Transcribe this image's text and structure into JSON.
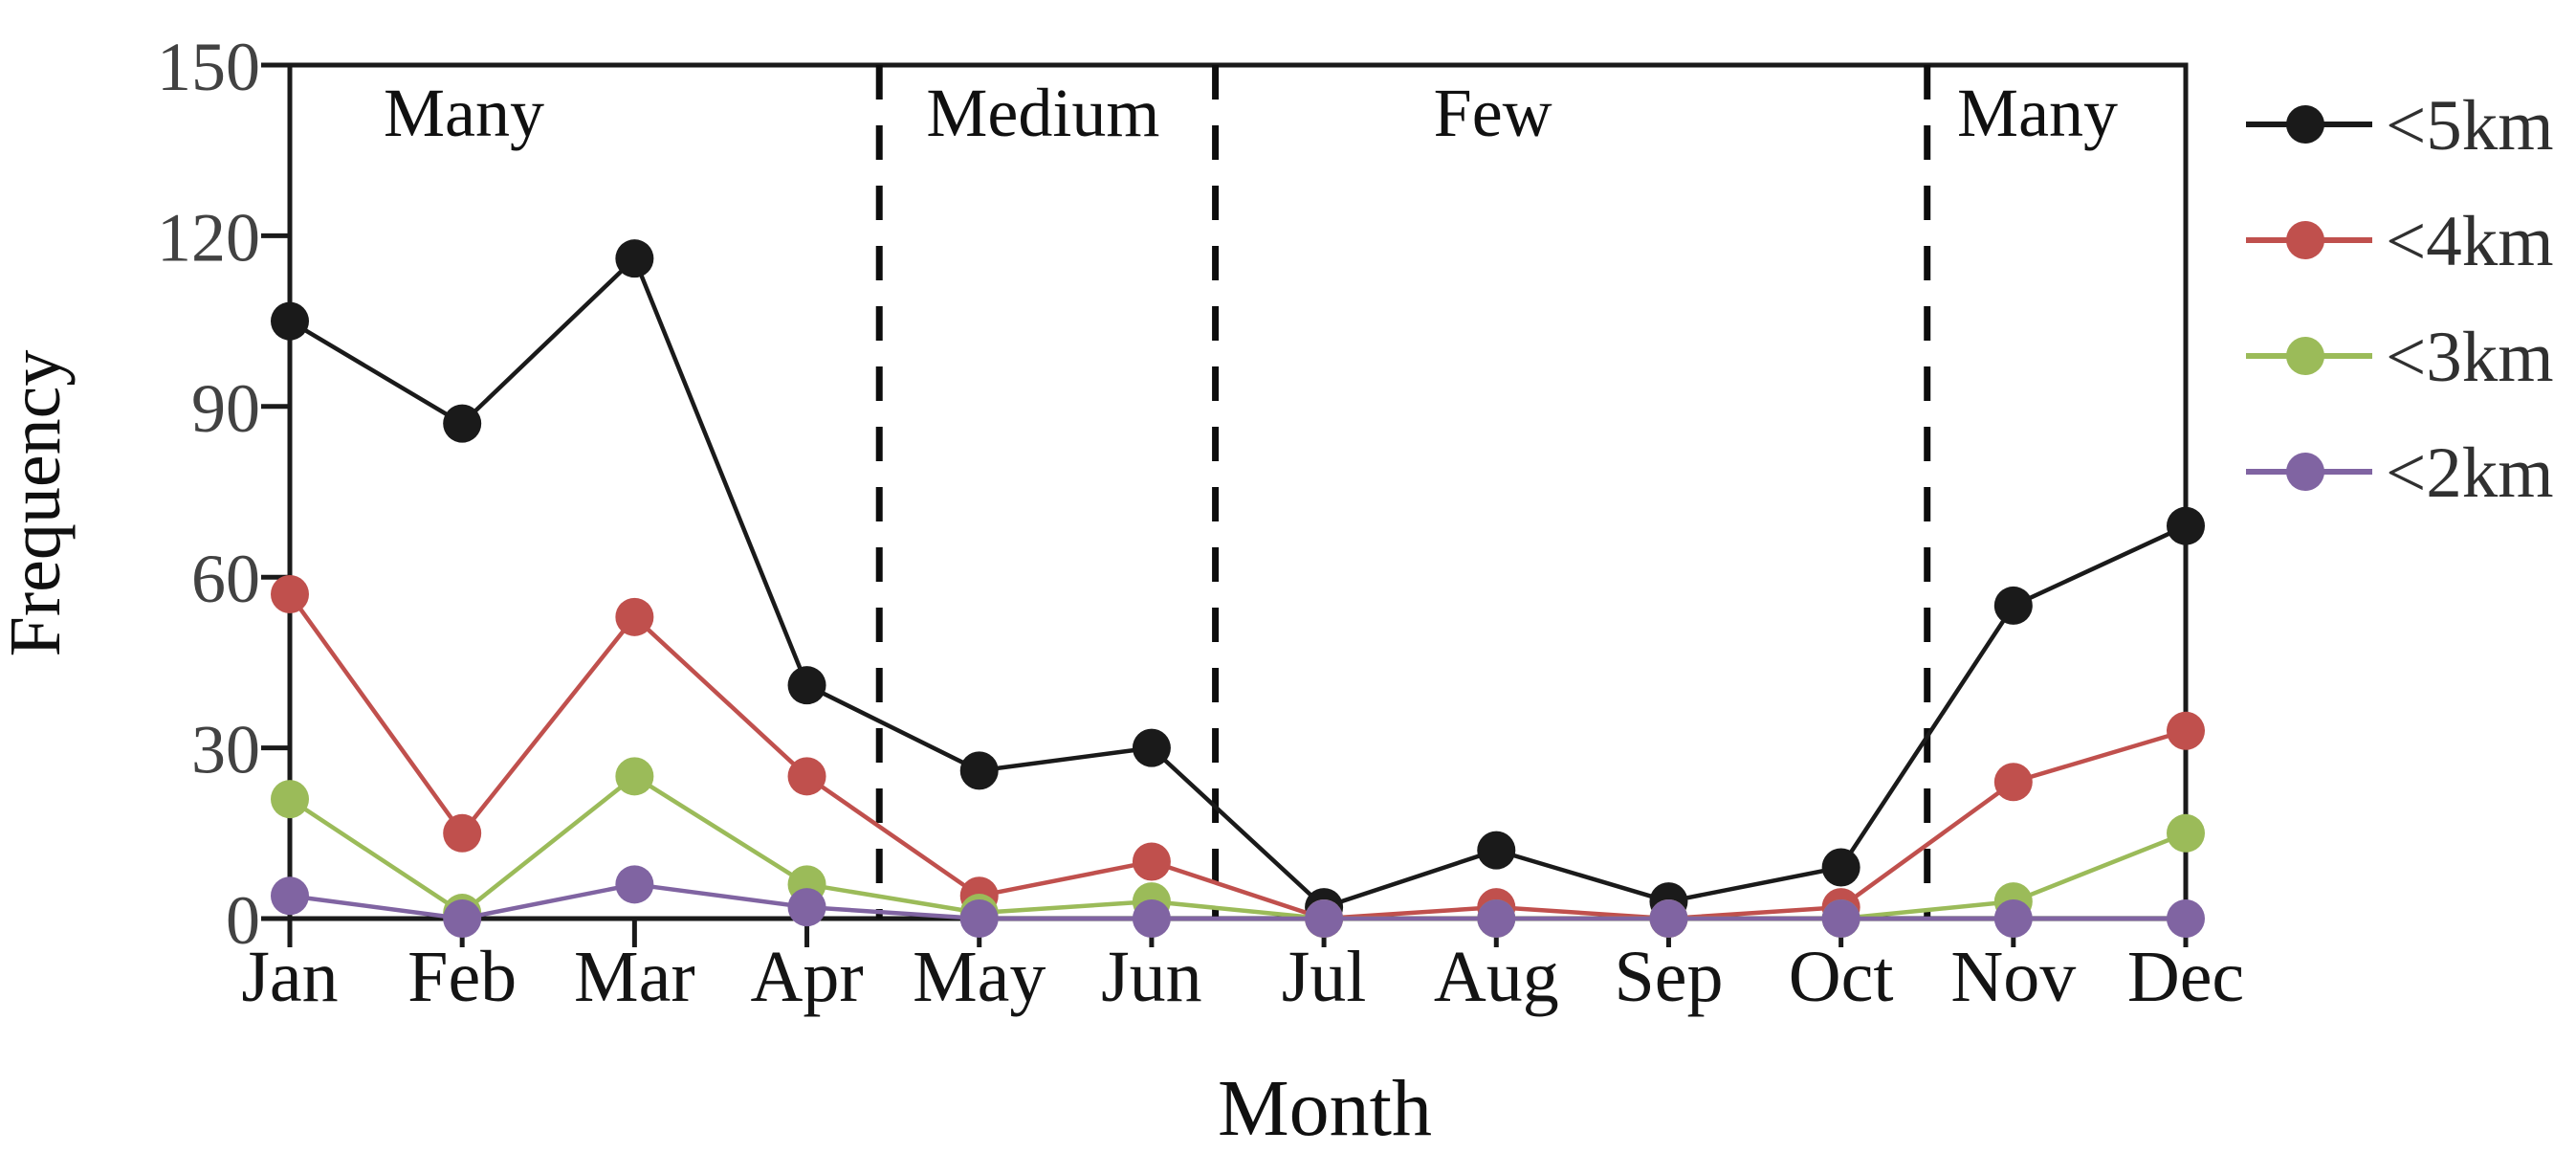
{
  "figure_title": "",
  "chart_data": {
    "type": "line",
    "title": "",
    "xlabel": "Month",
    "ylabel": "Frequency",
    "ylim": [
      0,
      150
    ],
    "yticks": [
      0,
      30,
      60,
      90,
      120,
      150
    ],
    "grid": false,
    "legend_position": "right",
    "categories": [
      "Jan",
      "Feb",
      "Mar",
      "Apr",
      "May",
      "Jun",
      "Jul",
      "Aug",
      "Sep",
      "Oct",
      "Nov",
      "Dec"
    ],
    "series": [
      {
        "name": "<5km",
        "color": "#1a1a1a",
        "values": [
          105,
          87,
          116,
          41,
          26,
          30,
          2,
          12,
          3,
          9,
          55,
          69
        ]
      },
      {
        "name": "<4km",
        "color": "#c0504d",
        "values": [
          57,
          15,
          53,
          25,
          4,
          10,
          0,
          2,
          0,
          2,
          24,
          33
        ]
      },
      {
        "name": "<3km",
        "color": "#9bbb59",
        "values": [
          21,
          1,
          25,
          6,
          1,
          3,
          0,
          0,
          0,
          0,
          3,
          15
        ]
      },
      {
        "name": "<2km",
        "color": "#8064a2",
        "values": [
          4,
          0,
          6,
          2,
          0,
          0,
          0,
          0,
          0,
          0,
          0,
          0
        ]
      }
    ],
    "dividers_month_x": [
      3.42,
      5.37,
      9.5
    ],
    "annotations": [
      {
        "text": "Many",
        "month_x": 1.01
      },
      {
        "text": "Medium",
        "month_x": 4.37
      },
      {
        "text": "Few",
        "month_x": 6.98
      },
      {
        "text": "Many",
        "month_x": 10.14
      }
    ],
    "axis_color": "#1a1a1a",
    "divider_color": "#0d0d0d"
  }
}
